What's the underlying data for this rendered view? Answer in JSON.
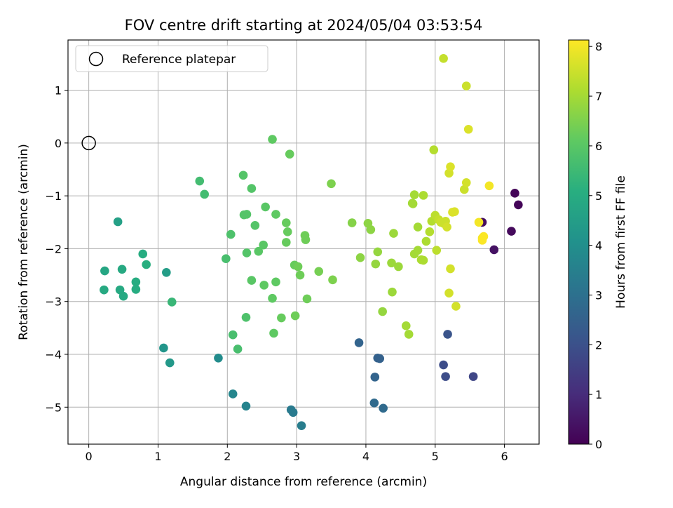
{
  "chart_data": {
    "type": "scatter",
    "title": "FOV centre drift starting at 2024/05/04 03:53:54",
    "xlabel": "Angular distance from reference (arcmin)",
    "ylabel": "Rotation from reference (arcmin)",
    "xlim": [
      -0.3,
      6.5
    ],
    "ylim": [
      -5.7,
      1.95
    ],
    "xticks": [
      0,
      1,
      2,
      3,
      4,
      5,
      6
    ],
    "yticks": [
      1,
      0,
      -1,
      -2,
      -3,
      -4,
      -5
    ],
    "xtick_labels": [
      "0",
      "1",
      "2",
      "3",
      "4",
      "5",
      "6"
    ],
    "ytick_labels": [
      "1",
      "0",
      "−1",
      "−2",
      "−3",
      "−4",
      "−5"
    ],
    "grid": true,
    "legend": {
      "placement": "top-left",
      "entries": [
        "Reference platepar"
      ]
    },
    "reference_point": {
      "x": 0,
      "y": 0
    },
    "colorbar": {
      "label": "Hours from first FF file",
      "colormap": "viridis",
      "range": [
        0,
        8.13
      ],
      "ticks": [
        0,
        1,
        2,
        3,
        4,
        5,
        6,
        7,
        8
      ],
      "tick_labels": [
        "0",
        "1",
        "2",
        "3",
        "4",
        "5",
        "6",
        "7",
        "8"
      ]
    },
    "points": [
      {
        "x": 6.15,
        "y": -0.95,
        "c": 0.1
      },
      {
        "x": 6.2,
        "y": -1.17,
        "c": 0.1
      },
      {
        "x": 5.68,
        "y": -1.5,
        "c": 0.3
      },
      {
        "x": 6.1,
        "y": -1.67,
        "c": 0.2
      },
      {
        "x": 5.85,
        "y": -2.02,
        "c": 0.4
      },
      {
        "x": 5.55,
        "y": -4.42,
        "c": 1.7
      },
      {
        "x": 5.15,
        "y": -4.42,
        "c": 1.9
      },
      {
        "x": 5.12,
        "y": -4.2,
        "c": 1.9
      },
      {
        "x": 5.18,
        "y": -3.62,
        "c": 2.1
      },
      {
        "x": 3.9,
        "y": -3.78,
        "c": 2.6
      },
      {
        "x": 4.17,
        "y": -4.07,
        "c": 2.5
      },
      {
        "x": 4.2,
        "y": -4.08,
        "c": 2.5
      },
      {
        "x": 4.13,
        "y": -4.43,
        "c": 2.6
      },
      {
        "x": 4.12,
        "y": -4.92,
        "c": 2.8
      },
      {
        "x": 4.25,
        "y": -5.02,
        "c": 2.8
      },
      {
        "x": 3.07,
        "y": -5.35,
        "c": 3.4
      },
      {
        "x": 2.92,
        "y": -5.05,
        "c": 3.3
      },
      {
        "x": 2.95,
        "y": -5.1,
        "c": 3.3
      },
      {
        "x": 2.27,
        "y": -4.98,
        "c": 3.6
      },
      {
        "x": 2.08,
        "y": -4.75,
        "c": 3.7
      },
      {
        "x": 1.87,
        "y": -4.07,
        "c": 3.9
      },
      {
        "x": 1.08,
        "y": -3.88,
        "c": 4.2
      },
      {
        "x": 1.17,
        "y": -4.16,
        "c": 4.3
      },
      {
        "x": 1.12,
        "y": -2.45,
        "c": 4.5
      },
      {
        "x": 0.42,
        "y": -1.49,
        "c": 4.6
      },
      {
        "x": 0.23,
        "y": -2.42,
        "c": 4.8
      },
      {
        "x": 0.22,
        "y": -2.78,
        "c": 4.9
      },
      {
        "x": 0.45,
        "y": -2.78,
        "c": 4.9
      },
      {
        "x": 0.5,
        "y": -2.9,
        "c": 4.9
      },
      {
        "x": 0.48,
        "y": -2.39,
        "c": 4.9
      },
      {
        "x": 0.68,
        "y": -2.63,
        "c": 5.0
      },
      {
        "x": 0.68,
        "y": -2.77,
        "c": 5.0
      },
      {
        "x": 0.78,
        "y": -2.1,
        "c": 5.0
      },
      {
        "x": 0.83,
        "y": -2.3,
        "c": 5.1
      },
      {
        "x": 1.2,
        "y": -3.01,
        "c": 5.4
      },
      {
        "x": 1.6,
        "y": -0.72,
        "c": 5.6
      },
      {
        "x": 1.67,
        "y": -0.97,
        "c": 5.6
      },
      {
        "x": 2.15,
        "y": -3.9,
        "c": 5.7
      },
      {
        "x": 2.08,
        "y": -3.63,
        "c": 5.7
      },
      {
        "x": 1.98,
        "y": -2.19,
        "c": 5.7
      },
      {
        "x": 2.05,
        "y": -1.73,
        "c": 5.8
      },
      {
        "x": 2.27,
        "y": -3.3,
        "c": 5.8
      },
      {
        "x": 2.23,
        "y": -0.61,
        "c": 5.9
      },
      {
        "x": 2.35,
        "y": -0.86,
        "c": 5.9
      },
      {
        "x": 2.24,
        "y": -1.36,
        "c": 5.9
      },
      {
        "x": 2.28,
        "y": -1.35,
        "c": 5.9
      },
      {
        "x": 2.4,
        "y": -1.56,
        "c": 5.9
      },
      {
        "x": 2.28,
        "y": -2.08,
        "c": 5.9
      },
      {
        "x": 2.45,
        "y": -2.05,
        "c": 6.0
      },
      {
        "x": 2.35,
        "y": -2.6,
        "c": 6.0
      },
      {
        "x": 2.52,
        "y": -1.93,
        "c": 6.0
      },
      {
        "x": 2.55,
        "y": -1.21,
        "c": 6.0
      },
      {
        "x": 2.65,
        "y": 0.07,
        "c": 6.1
      },
      {
        "x": 2.7,
        "y": -1.35,
        "c": 6.1
      },
      {
        "x": 2.53,
        "y": -2.69,
        "c": 6.1
      },
      {
        "x": 2.65,
        "y": -2.94,
        "c": 6.1
      },
      {
        "x": 2.7,
        "y": -2.63,
        "c": 6.1
      },
      {
        "x": 2.67,
        "y": -3.6,
        "c": 6.1
      },
      {
        "x": 2.78,
        "y": -3.31,
        "c": 6.2
      },
      {
        "x": 2.85,
        "y": -1.51,
        "c": 6.2
      },
      {
        "x": 2.87,
        "y": -1.68,
        "c": 6.2
      },
      {
        "x": 2.85,
        "y": -1.88,
        "c": 6.2
      },
      {
        "x": 2.9,
        "y": -0.21,
        "c": 6.2
      },
      {
        "x": 2.97,
        "y": -2.31,
        "c": 6.2
      },
      {
        "x": 3.02,
        "y": -2.34,
        "c": 6.3
      },
      {
        "x": 2.98,
        "y": -3.27,
        "c": 6.3
      },
      {
        "x": 3.05,
        "y": -2.5,
        "c": 6.3
      },
      {
        "x": 3.12,
        "y": -1.75,
        "c": 6.3
      },
      {
        "x": 3.13,
        "y": -1.83,
        "c": 6.3
      },
      {
        "x": 3.15,
        "y": -2.95,
        "c": 6.3
      },
      {
        "x": 3.32,
        "y": -2.43,
        "c": 6.4
      },
      {
        "x": 3.5,
        "y": -0.77,
        "c": 6.5
      },
      {
        "x": 3.52,
        "y": -2.59,
        "c": 6.5
      },
      {
        "x": 3.8,
        "y": -1.51,
        "c": 6.6
      },
      {
        "x": 3.92,
        "y": -2.17,
        "c": 6.7
      },
      {
        "x": 4.03,
        "y": -1.52,
        "c": 6.7
      },
      {
        "x": 4.07,
        "y": -1.64,
        "c": 6.7
      },
      {
        "x": 4.17,
        "y": -2.06,
        "c": 6.8
      },
      {
        "x": 4.14,
        "y": -2.29,
        "c": 6.8
      },
      {
        "x": 4.24,
        "y": -3.19,
        "c": 6.8
      },
      {
        "x": 4.37,
        "y": -2.27,
        "c": 6.9
      },
      {
        "x": 4.38,
        "y": -2.82,
        "c": 6.9
      },
      {
        "x": 4.4,
        "y": -1.71,
        "c": 6.9
      },
      {
        "x": 4.47,
        "y": -2.34,
        "c": 6.9
      },
      {
        "x": 4.58,
        "y": -3.46,
        "c": 7.0
      },
      {
        "x": 4.62,
        "y": -3.62,
        "c": 7.0
      },
      {
        "x": 4.67,
        "y": -1.14,
        "c": 7.0
      },
      {
        "x": 4.68,
        "y": -1.15,
        "c": 7.0
      },
      {
        "x": 4.7,
        "y": -0.98,
        "c": 7.0
      },
      {
        "x": 4.7,
        "y": -2.1,
        "c": 7.0
      },
      {
        "x": 4.75,
        "y": -2.03,
        "c": 7.0
      },
      {
        "x": 4.75,
        "y": -1.59,
        "c": 7.0
      },
      {
        "x": 4.8,
        "y": -2.21,
        "c": 7.1
      },
      {
        "x": 4.83,
        "y": -2.22,
        "c": 7.1
      },
      {
        "x": 4.83,
        "y": -0.99,
        "c": 7.1
      },
      {
        "x": 4.87,
        "y": -1.86,
        "c": 7.1
      },
      {
        "x": 4.92,
        "y": -1.68,
        "c": 7.2
      },
      {
        "x": 4.95,
        "y": -1.48,
        "c": 7.2
      },
      {
        "x": 4.98,
        "y": -0.13,
        "c": 7.2
      },
      {
        "x": 5.0,
        "y": -1.37,
        "c": 7.3
      },
      {
        "x": 5.02,
        "y": -2.03,
        "c": 7.3
      },
      {
        "x": 5.05,
        "y": -1.45,
        "c": 7.4
      },
      {
        "x": 5.08,
        "y": -1.5,
        "c": 7.5
      },
      {
        "x": 5.12,
        "y": -1.52,
        "c": 7.5
      },
      {
        "x": 5.15,
        "y": -1.48,
        "c": 7.5
      },
      {
        "x": 5.17,
        "y": -1.59,
        "c": 7.6
      },
      {
        "x": 5.2,
        "y": -0.57,
        "c": 7.6
      },
      {
        "x": 5.22,
        "y": -0.45,
        "c": 7.7
      },
      {
        "x": 5.22,
        "y": -2.38,
        "c": 7.6
      },
      {
        "x": 5.2,
        "y": -2.84,
        "c": 7.6
      },
      {
        "x": 5.25,
        "y": -1.31,
        "c": 7.7
      },
      {
        "x": 5.28,
        "y": -1.3,
        "c": 7.7
      },
      {
        "x": 5.3,
        "y": -3.09,
        "c": 7.6
      },
      {
        "x": 5.12,
        "y": 1.6,
        "c": 7.4
      },
      {
        "x": 5.42,
        "y": -0.88,
        "c": 7.5
      },
      {
        "x": 5.45,
        "y": -0.75,
        "c": 7.6
      },
      {
        "x": 5.45,
        "y": 1.08,
        "c": 7.5
      },
      {
        "x": 5.48,
        "y": 0.26,
        "c": 7.7
      },
      {
        "x": 5.63,
        "y": -1.5,
        "c": 8.0
      },
      {
        "x": 5.68,
        "y": -1.8,
        "c": 8.0
      },
      {
        "x": 5.7,
        "y": -1.77,
        "c": 8.1
      },
      {
        "x": 5.68,
        "y": -1.84,
        "c": 8.1
      },
      {
        "x": 5.78,
        "y": -0.81,
        "c": 8.0
      }
    ]
  }
}
